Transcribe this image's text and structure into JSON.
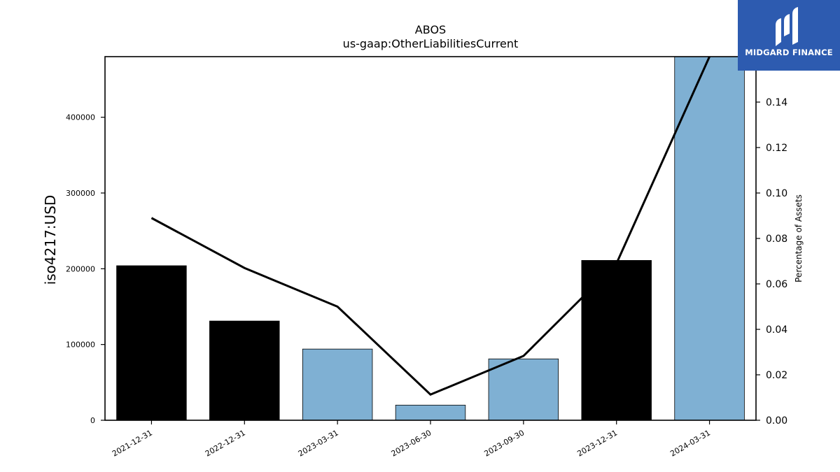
{
  "chart_data": {
    "type": "bar",
    "title": "ABOS",
    "subtitle": "us-gaap:OtherLiabilitiesCurrent",
    "ylabel": "iso4217:USD",
    "y2label": "Percentage of Assets",
    "categories": [
      "2021-12-31",
      "2022-12-31",
      "2023-03-31",
      "2023-06-30",
      "2023-09-30",
      "2023-12-31",
      "2024-03-31"
    ],
    "bar_kinds": [
      "annual",
      "annual",
      "quarterly",
      "quarterly",
      "quarterly",
      "annual",
      "quarterly"
    ],
    "series": [
      {
        "values": [
          204000,
          131000,
          94000,
          20000,
          81000,
          211000,
          482000
        ]
      },
      {
        "axis": "right",
        "values": [
          0.089,
          0.067,
          0.05,
          0.0113,
          0.0283,
          0.069,
          0.16
        ]
      }
    ],
    "ylim": [
      0,
      480000
    ],
    "y2lim": [
      0,
      0.16
    ],
    "yticks": [
      0,
      100000,
      200000,
      300000,
      400000
    ],
    "ytick_labels": [
      "0",
      "100000",
      "200000",
      "300000",
      "400000"
    ],
    "y2ticks": [
      0,
      0.02,
      0.04,
      0.06,
      0.08,
      0.1,
      0.12,
      0.14
    ],
    "y2tick_labels": [
      "0.00",
      "0.02",
      "0.04",
      "0.06",
      "0.08",
      "0.10",
      "0.12",
      "0.14"
    ],
    "grid": false,
    "colors": {
      "annual": "#000000",
      "quarterly": "#7fb0d3",
      "line": "#000000"
    }
  },
  "logo": {
    "text": "MIDGARD FINANCE",
    "bg": "#2d5bb0"
  }
}
